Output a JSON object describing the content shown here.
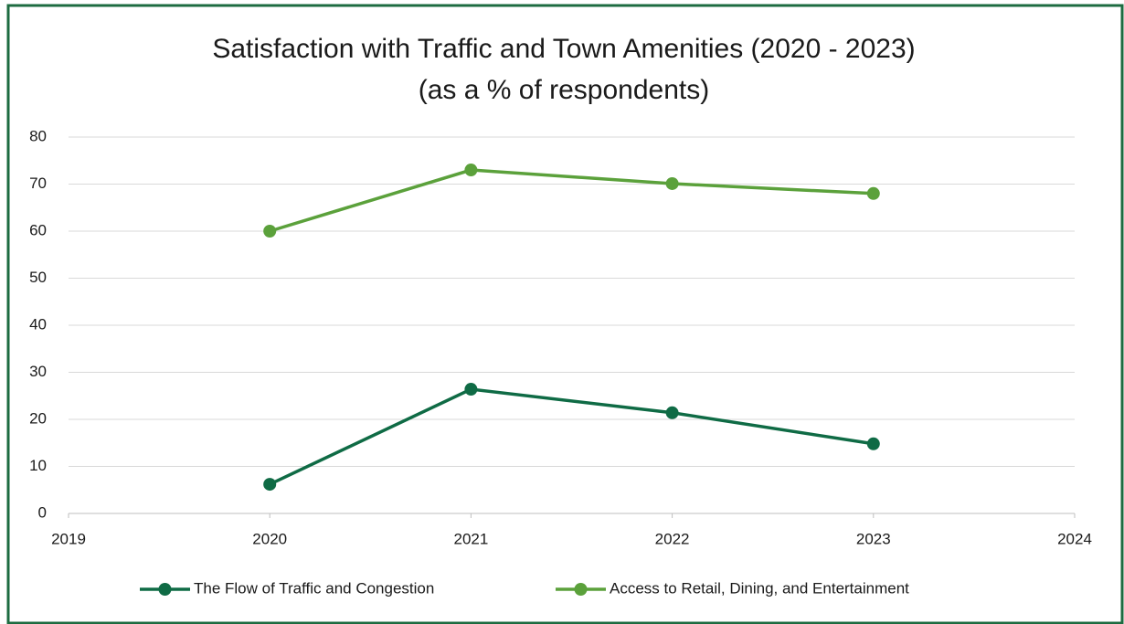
{
  "chart_data": {
    "type": "line",
    "title": "Satisfaction with Traffic and Town Amenities (2020 - 2023)",
    "subtitle": "(as a % of respondents)",
    "x": [
      2020,
      2021,
      2022,
      2023
    ],
    "series": [
      {
        "name": "The Flow of Traffic and Congestion",
        "color": "#0f6b45",
        "values": [
          6.2,
          26.4,
          21.4,
          14.8
        ]
      },
      {
        "name": "Access to Retail, Dining, and Entertainment",
        "color": "#5ba13b",
        "values": [
          60,
          73,
          70.1,
          68
        ]
      }
    ],
    "xlim": [
      2019,
      2024
    ],
    "xticks": [
      2019,
      2020,
      2021,
      2022,
      2023,
      2024
    ],
    "ylim": [
      0,
      80
    ],
    "yticks": [
      0,
      10,
      20,
      30,
      40,
      50,
      60,
      70,
      80
    ],
    "grid": true,
    "legend": "bottom"
  }
}
